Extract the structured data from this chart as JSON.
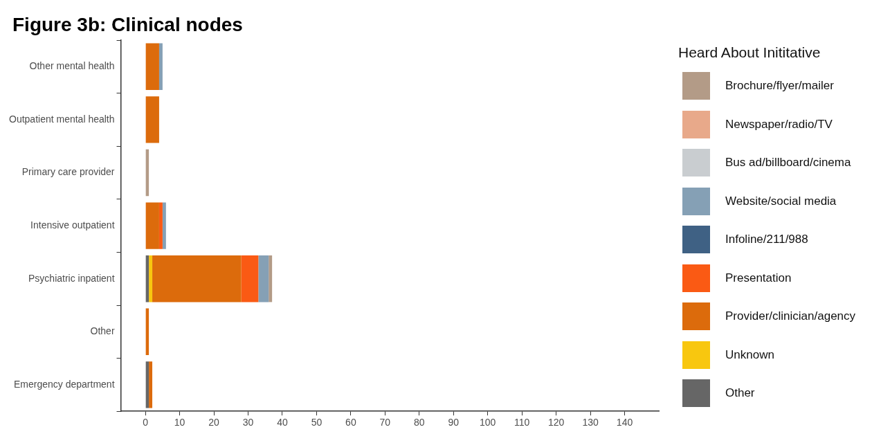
{
  "chart_data": {
    "type": "bar",
    "orientation": "horizontal",
    "stacked": true,
    "title": "Figure 3b: Clinical nodes",
    "legend_title": "Heard About Inititative",
    "legend": "right",
    "categories": [
      "Other mental health",
      "Outpatient mental health",
      "Primary care provider",
      "Intensive outpatient",
      "Psychiatric inpatient",
      "Other",
      "Emergency department"
    ],
    "xlim": [
      -7.2,
      150
    ],
    "xticks": [
      0,
      10,
      20,
      30,
      40,
      50,
      60,
      70,
      80,
      90,
      100,
      110,
      120,
      130,
      140
    ],
    "series": [
      {
        "name": "Other",
        "color": "#666666",
        "values": [
          null,
          null,
          null,
          null,
          1,
          null,
          1
        ]
      },
      {
        "name": "Unknown",
        "color": "#f8c70f",
        "values": [
          null,
          null,
          null,
          null,
          1,
          null,
          null
        ]
      },
      {
        "name": "Provider/clinician/agency",
        "color": "#dc6b0c",
        "values": [
          4,
          4,
          null,
          4,
          26,
          1,
          1
        ]
      },
      {
        "name": "Presentation",
        "color": "#fa5a14",
        "values": [
          null,
          null,
          null,
          1,
          5,
          null,
          null
        ]
      },
      {
        "name": "Infoline/211/988",
        "color": "#3f6184",
        "values": [
          null,
          null,
          null,
          null,
          null,
          null,
          null
        ]
      },
      {
        "name": "Website/social media",
        "color": "#85a0b5",
        "values": [
          1,
          null,
          null,
          1,
          3,
          null,
          null
        ]
      },
      {
        "name": "Bus ad/billboard/cinema",
        "color": "#c9cdd0",
        "values": [
          null,
          null,
          null,
          null,
          null,
          null,
          null
        ]
      },
      {
        "name": "Newspaper/radio/TV",
        "color": "#e8a98a",
        "values": [
          null,
          null,
          null,
          null,
          null,
          null,
          null
        ]
      },
      {
        "name": "Brochure/flyer/mailer",
        "color": "#b39b87",
        "values": [
          null,
          null,
          1,
          null,
          1,
          null,
          null
        ]
      }
    ]
  }
}
